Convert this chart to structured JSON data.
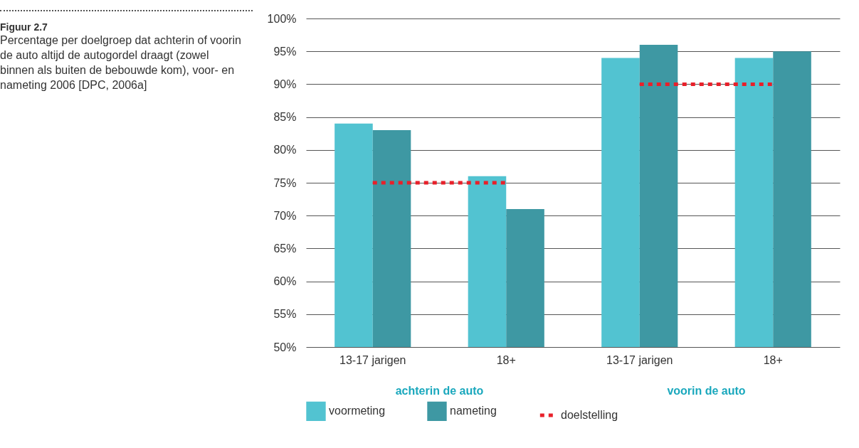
{
  "chart_data": {
    "type": "bar",
    "title": "Figuur 2.7",
    "subtitle": "Percentage per doelgroep dat achterin of voorin de auto altijd de autogordel draagt (zowel binnen als buiten de bebouwde kom), voor- en nameting 2006 [DPC, 2006a]",
    "categories": [
      "13-17 jarigen",
      "18+",
      "13-17 jarigen",
      "18+"
    ],
    "series": [
      {
        "name": "voormeting",
        "color": "#52c3d1",
        "values": [
          84,
          76,
          94,
          94
        ]
      },
      {
        "name": "nameting",
        "color": "#3e98a3",
        "values": [
          83,
          71,
          96,
          95
        ]
      },
      {
        "name": "doelstelling",
        "type": "line",
        "line_style": "dotted",
        "color": "#e8202a",
        "values": [
          75,
          75,
          90,
          90
        ]
      }
    ],
    "annotations": [
      "achterin de auto",
      "voorin de auto"
    ],
    "ylim": [
      50,
      100
    ],
    "yticks": [
      {
        "value": 50,
        "label": "50%"
      },
      {
        "value": 55,
        "label": "55%"
      },
      {
        "value": 60,
        "label": "60%"
      },
      {
        "value": 65,
        "label": "65%"
      },
      {
        "value": 70,
        "label": "70%"
      },
      {
        "value": 75,
        "label": "75%"
      },
      {
        "value": 80,
        "label": "80%"
      },
      {
        "value": 85,
        "label": "85%"
      },
      {
        "value": 90,
        "label": "90%"
      },
      {
        "value": 95,
        "label": "95%"
      },
      {
        "value": 100,
        "label": "100%"
      }
    ],
    "grid": "y",
    "legend": "bottom"
  }
}
